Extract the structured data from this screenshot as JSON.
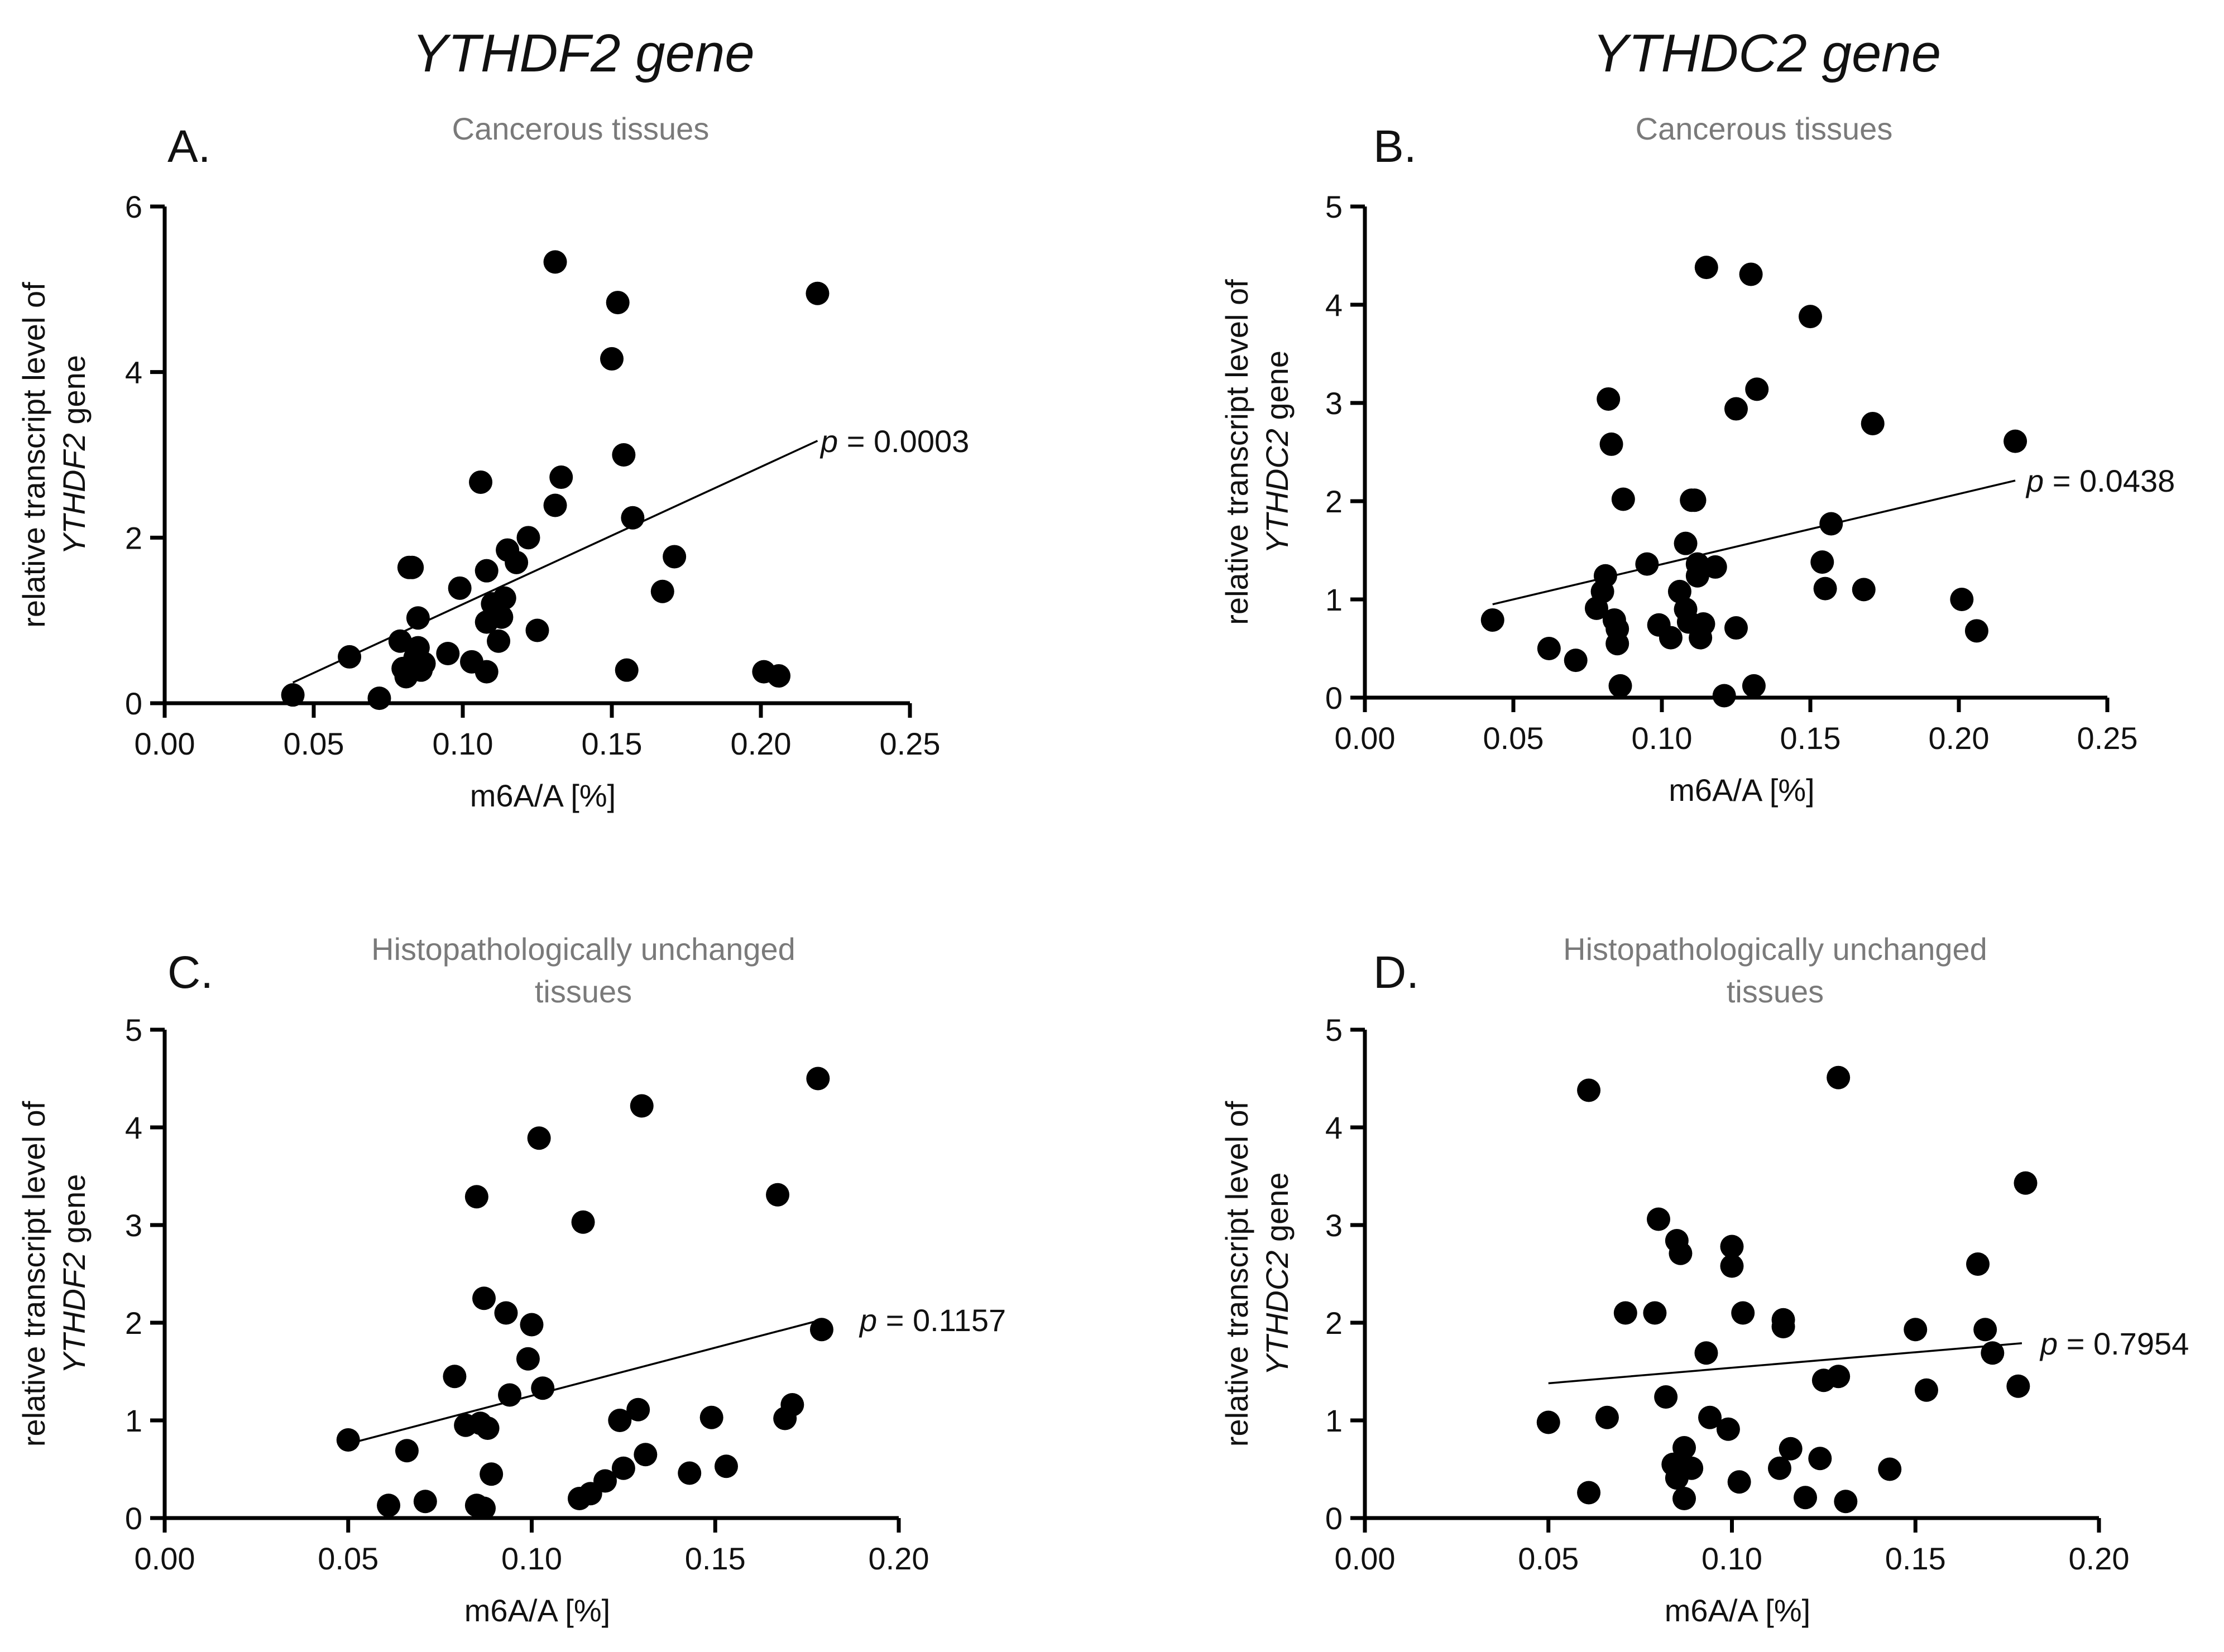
{
  "gene_titles": {
    "left": "YTHDF2 gene",
    "right": "YTHDC2 gene"
  },
  "chart_data": [
    {
      "id": "A",
      "type": "scatter",
      "panel_label": "A.",
      "title_lines": [
        "Cancerous tissues"
      ],
      "xlabel": "m6A/A [%]",
      "ylabel_line1": "relative transcript level of",
      "ylabel_gene": "YTHDF2",
      "ylabel_suffix": " gene",
      "xlim": [
        0,
        0.25
      ],
      "ylim": [
        0,
        6
      ],
      "xticks": [
        0,
        0.05,
        0.1,
        0.15,
        0.2,
        0.25
      ],
      "xtick_labels": [
        "0.00",
        "0.05",
        "0.10",
        "0.15",
        "0.20",
        "0.25"
      ],
      "yticks": [
        0,
        2,
        4,
        6
      ],
      "ytick_labels": [
        "0",
        "2",
        "4",
        "6"
      ],
      "fit": {
        "x1": 0.043,
        "y1": 0.25,
        "x2": 0.219,
        "y2": 3.17
      },
      "p_prefix": "p",
      "p_text": " = 0.0003",
      "points": [
        [
          0.043,
          0.1
        ],
        [
          0.062,
          0.56
        ],
        [
          0.072,
          0.06
        ],
        [
          0.079,
          0.75
        ],
        [
          0.08,
          0.42
        ],
        [
          0.081,
          0.32
        ],
        [
          0.082,
          1.64
        ],
        [
          0.083,
          1.64
        ],
        [
          0.084,
          0.55
        ],
        [
          0.085,
          1.03
        ],
        [
          0.085,
          0.67
        ],
        [
          0.086,
          0.4
        ],
        [
          0.087,
          0.48
        ],
        [
          0.095,
          0.6
        ],
        [
          0.099,
          1.39
        ],
        [
          0.103,
          0.5
        ],
        [
          0.106,
          2.67
        ],
        [
          0.108,
          0.38
        ],
        [
          0.108,
          1.6
        ],
        [
          0.108,
          0.98
        ],
        [
          0.11,
          1.2
        ],
        [
          0.112,
          0.75
        ],
        [
          0.113,
          1.04
        ],
        [
          0.114,
          1.27
        ],
        [
          0.115,
          1.85
        ],
        [
          0.118,
          1.7
        ],
        [
          0.122,
          2.0
        ],
        [
          0.125,
          0.88
        ],
        [
          0.131,
          2.39
        ],
        [
          0.131,
          5.33
        ],
        [
          0.133,
          2.73
        ],
        [
          0.15,
          4.16
        ],
        [
          0.152,
          4.84
        ],
        [
          0.154,
          3.0
        ],
        [
          0.155,
          0.4
        ],
        [
          0.157,
          2.24
        ],
        [
          0.167,
          1.35
        ],
        [
          0.171,
          1.77
        ],
        [
          0.201,
          0.38
        ],
        [
          0.206,
          0.33
        ],
        [
          0.219,
          4.95
        ]
      ]
    },
    {
      "id": "B",
      "type": "scatter",
      "panel_label": "B.",
      "title_lines": [
        "Cancerous tissues"
      ],
      "xlabel": "m6A/A [%]",
      "ylabel_line1": "relative transcript level of",
      "ylabel_gene": "YTHDC2",
      "ylabel_suffix": " gene",
      "xlim": [
        0,
        0.25
      ],
      "ylim": [
        0,
        5
      ],
      "xticks": [
        0,
        0.05,
        0.1,
        0.15,
        0.2,
        0.25
      ],
      "xtick_labels": [
        "0.00",
        "0.05",
        "0.10",
        "0.15",
        "0.20",
        "0.25"
      ],
      "yticks": [
        0,
        1,
        2,
        3,
        4,
        5
      ],
      "ytick_labels": [
        "0",
        "1",
        "2",
        "3",
        "4",
        "5"
      ],
      "fit": {
        "x1": 0.043,
        "y1": 0.95,
        "x2": 0.219,
        "y2": 2.21
      },
      "p_prefix": "p",
      "p_text": " = 0.0438",
      "points": [
        [
          0.043,
          0.79
        ],
        [
          0.062,
          0.5
        ],
        [
          0.071,
          0.38
        ],
        [
          0.078,
          0.91
        ],
        [
          0.08,
          1.08
        ],
        [
          0.081,
          1.24
        ],
        [
          0.082,
          3.04
        ],
        [
          0.083,
          2.58
        ],
        [
          0.084,
          0.79
        ],
        [
          0.085,
          0.7
        ],
        [
          0.085,
          0.55
        ],
        [
          0.086,
          0.12
        ],
        [
          0.087,
          2.02
        ],
        [
          0.095,
          1.36
        ],
        [
          0.099,
          0.74
        ],
        [
          0.103,
          0.61
        ],
        [
          0.106,
          1.08
        ],
        [
          0.108,
          0.9
        ],
        [
          0.108,
          1.57
        ],
        [
          0.109,
          0.77
        ],
        [
          0.11,
          2.01
        ],
        [
          0.111,
          2.01
        ],
        [
          0.112,
          1.36
        ],
        [
          0.112,
          1.24
        ],
        [
          0.113,
          0.61
        ],
        [
          0.114,
          0.75
        ],
        [
          0.115,
          4.38
        ],
        [
          0.118,
          1.33
        ],
        [
          0.121,
          0.02
        ],
        [
          0.125,
          2.94
        ],
        [
          0.125,
          0.71
        ],
        [
          0.13,
          4.31
        ],
        [
          0.131,
          0.12
        ],
        [
          0.132,
          3.14
        ],
        [
          0.15,
          3.88
        ],
        [
          0.154,
          1.38
        ],
        [
          0.155,
          1.11
        ],
        [
          0.157,
          1.77
        ],
        [
          0.168,
          1.1
        ],
        [
          0.171,
          2.79
        ],
        [
          0.201,
          1.0
        ],
        [
          0.206,
          0.68
        ],
        [
          0.219,
          2.61
        ]
      ]
    },
    {
      "id": "C",
      "type": "scatter",
      "panel_label": "C.",
      "title_lines": [
        "Histopathologically unchanged",
        "tissues"
      ],
      "xlabel": "m6A/A [%]",
      "ylabel_line1": "relative transcript level of",
      "ylabel_gene": "YTHDF2",
      "ylabel_suffix": " gene",
      "xlim": [
        0,
        0.2
      ],
      "ylim": [
        0,
        5
      ],
      "xticks": [
        0,
        0.05,
        0.1,
        0.15,
        0.2
      ],
      "xtick_labels": [
        "0.00",
        "0.05",
        "0.10",
        "0.15",
        "0.20"
      ],
      "yticks": [
        0,
        1,
        2,
        3,
        4,
        5
      ],
      "ytick_labels": [
        "0",
        "1",
        "2",
        "3",
        "4",
        "5"
      ],
      "fit": {
        "x1": 0.05,
        "y1": 0.76,
        "x2": 0.179,
        "y2": 2.03
      },
      "p_prefix": "p",
      "p_text": " = 0.1157",
      "points": [
        [
          0.05,
          0.8
        ],
        [
          0.061,
          0.13
        ],
        [
          0.066,
          0.69
        ],
        [
          0.071,
          0.17
        ],
        [
          0.079,
          1.45
        ],
        [
          0.082,
          0.95
        ],
        [
          0.085,
          3.29
        ],
        [
          0.085,
          0.13
        ],
        [
          0.086,
          0.97
        ],
        [
          0.087,
          2.25
        ],
        [
          0.087,
          0.1
        ],
        [
          0.088,
          0.92
        ],
        [
          0.089,
          0.45
        ],
        [
          0.093,
          2.1
        ],
        [
          0.094,
          1.26
        ],
        [
          0.099,
          1.63
        ],
        [
          0.1,
          1.98
        ],
        [
          0.102,
          3.89
        ],
        [
          0.103,
          1.33
        ],
        [
          0.113,
          0.2
        ],
        [
          0.114,
          3.03
        ],
        [
          0.116,
          0.25
        ],
        [
          0.12,
          0.38
        ],
        [
          0.124,
          1.0
        ],
        [
          0.125,
          0.51
        ],
        [
          0.129,
          1.11
        ],
        [
          0.13,
          4.22
        ],
        [
          0.131,
          0.65
        ],
        [
          0.143,
          0.46
        ],
        [
          0.149,
          1.03
        ],
        [
          0.153,
          0.53
        ],
        [
          0.167,
          3.31
        ],
        [
          0.169,
          1.02
        ],
        [
          0.171,
          1.16
        ],
        [
          0.178,
          4.5
        ],
        [
          0.179,
          1.93
        ]
      ]
    },
    {
      "id": "D",
      "type": "scatter",
      "panel_label": "D.",
      "title_lines": [
        "Histopathologically unchanged",
        "tissues"
      ],
      "xlabel": "m6A/A [%]",
      "ylabel_line1": "relative transcript level of",
      "ylabel_gene": "YTHDC2",
      "ylabel_suffix": " gene",
      "xlim": [
        0,
        0.2
      ],
      "ylim": [
        0,
        5
      ],
      "xticks": [
        0,
        0.05,
        0.1,
        0.15,
        0.2
      ],
      "xtick_labels": [
        "0.00",
        "0.05",
        "0.10",
        "0.15",
        "0.20"
      ],
      "yticks": [
        0,
        1,
        2,
        3,
        4,
        5
      ],
      "ytick_labels": [
        "0",
        "1",
        "2",
        "3",
        "4",
        "5"
      ],
      "fit": {
        "x1": 0.05,
        "y1": 1.38,
        "x2": 0.179,
        "y2": 1.79
      },
      "p_prefix": "p",
      "p_text": " = 0.7954",
      "points": [
        [
          0.05,
          0.98
        ],
        [
          0.061,
          4.38
        ],
        [
          0.061,
          0.26
        ],
        [
          0.066,
          1.03
        ],
        [
          0.071,
          2.1
        ],
        [
          0.079,
          2.1
        ],
        [
          0.08,
          3.06
        ],
        [
          0.082,
          1.24
        ],
        [
          0.084,
          0.55
        ],
        [
          0.085,
          2.84
        ],
        [
          0.085,
          0.41
        ],
        [
          0.086,
          2.71
        ],
        [
          0.086,
          0.55
        ],
        [
          0.087,
          0.2
        ],
        [
          0.087,
          0.72
        ],
        [
          0.089,
          0.51
        ],
        [
          0.093,
          1.69
        ],
        [
          0.094,
          1.03
        ],
        [
          0.099,
          0.91
        ],
        [
          0.1,
          2.58
        ],
        [
          0.1,
          2.78
        ],
        [
          0.102,
          0.37
        ],
        [
          0.103,
          2.1
        ],
        [
          0.113,
          0.51
        ],
        [
          0.114,
          1.96
        ],
        [
          0.114,
          2.03
        ],
        [
          0.116,
          0.71
        ],
        [
          0.12,
          0.21
        ],
        [
          0.124,
          0.61
        ],
        [
          0.125,
          1.41
        ],
        [
          0.129,
          1.45
        ],
        [
          0.129,
          4.51
        ],
        [
          0.131,
          0.17
        ],
        [
          0.143,
          0.5
        ],
        [
          0.15,
          1.93
        ],
        [
          0.153,
          1.31
        ],
        [
          0.167,
          2.6
        ],
        [
          0.169,
          1.93
        ],
        [
          0.171,
          1.69
        ],
        [
          0.178,
          1.35
        ],
        [
          0.18,
          3.43
        ]
      ]
    }
  ]
}
